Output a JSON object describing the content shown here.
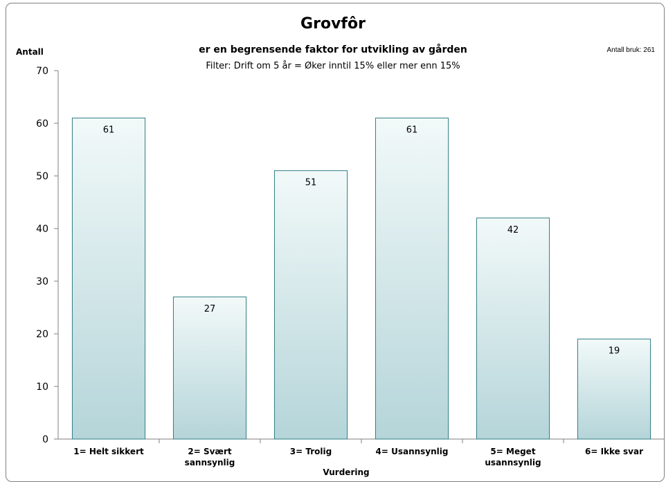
{
  "chart_data": {
    "type": "bar",
    "title": "Grovfôr",
    "subtitle": "er en begrensende faktor for utvikling av gården",
    "filter": "Filter: Drift om 5 år = Øker inntil 15% eller mer enn 15%",
    "annotation": "Antall bruk: 261",
    "ylabel": "Antall",
    "xlabel": "Vurdering",
    "ylim": [
      0,
      70
    ],
    "yticks": [
      0,
      10,
      20,
      30,
      40,
      50,
      60,
      70
    ],
    "categories": [
      [
        "1= Helt sikkert"
      ],
      [
        "2= Svært",
        "sannsynlig"
      ],
      [
        "3= Trolig"
      ],
      [
        "4= Usannsynlig"
      ],
      [
        "5= Meget",
        "usannsynlig"
      ],
      [
        "6= Ikke svar"
      ]
    ],
    "values": [
      61,
      27,
      51,
      61,
      42,
      19
    ],
    "grid": false,
    "colors": {
      "bar_top": "#f2f9f9",
      "bar_bottom": "#b5d5d9",
      "bar_stroke": "#2e7c82",
      "axis": "#7f7f7f"
    }
  }
}
